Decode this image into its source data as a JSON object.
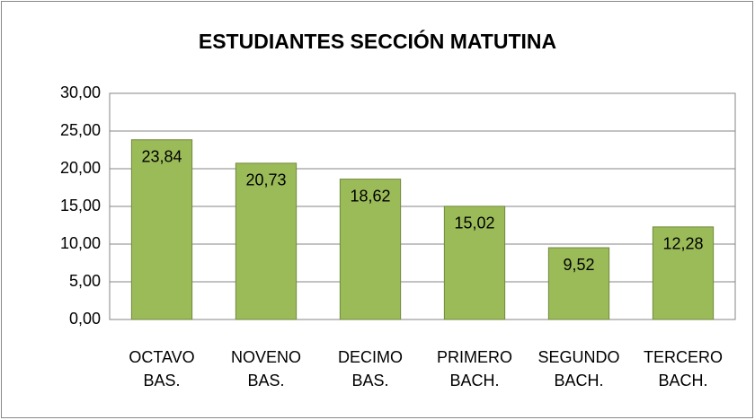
{
  "chart_data": {
    "type": "bar",
    "title": "ESTUDIANTES SECCIÓN MATUTINA",
    "categories": [
      "OCTAVO BAS.",
      "NOVENO BAS.",
      "DECIMO BAS.",
      "PRIMERO BACH.",
      "SEGUNDO BACH.",
      "TERCERO BACH."
    ],
    "values": [
      23.84,
      20.73,
      18.62,
      15.02,
      9.52,
      12.28
    ],
    "value_labels": [
      "23,84",
      "20,73",
      "18,62",
      "15,02",
      "9,52",
      "12,28"
    ],
    "color": "#9bbb59",
    "ylim": [
      0,
      30
    ],
    "yticks": [
      {
        "value": 0,
        "label": "0,00"
      },
      {
        "value": 5,
        "label": "5,00"
      },
      {
        "value": 10,
        "label": "10,00"
      },
      {
        "value": 15,
        "label": "15,00"
      },
      {
        "value": 20,
        "label": "20,00"
      },
      {
        "value": 25,
        "label": "25,00"
      },
      {
        "value": 30,
        "label": "30,00"
      }
    ],
    "grid": true
  }
}
